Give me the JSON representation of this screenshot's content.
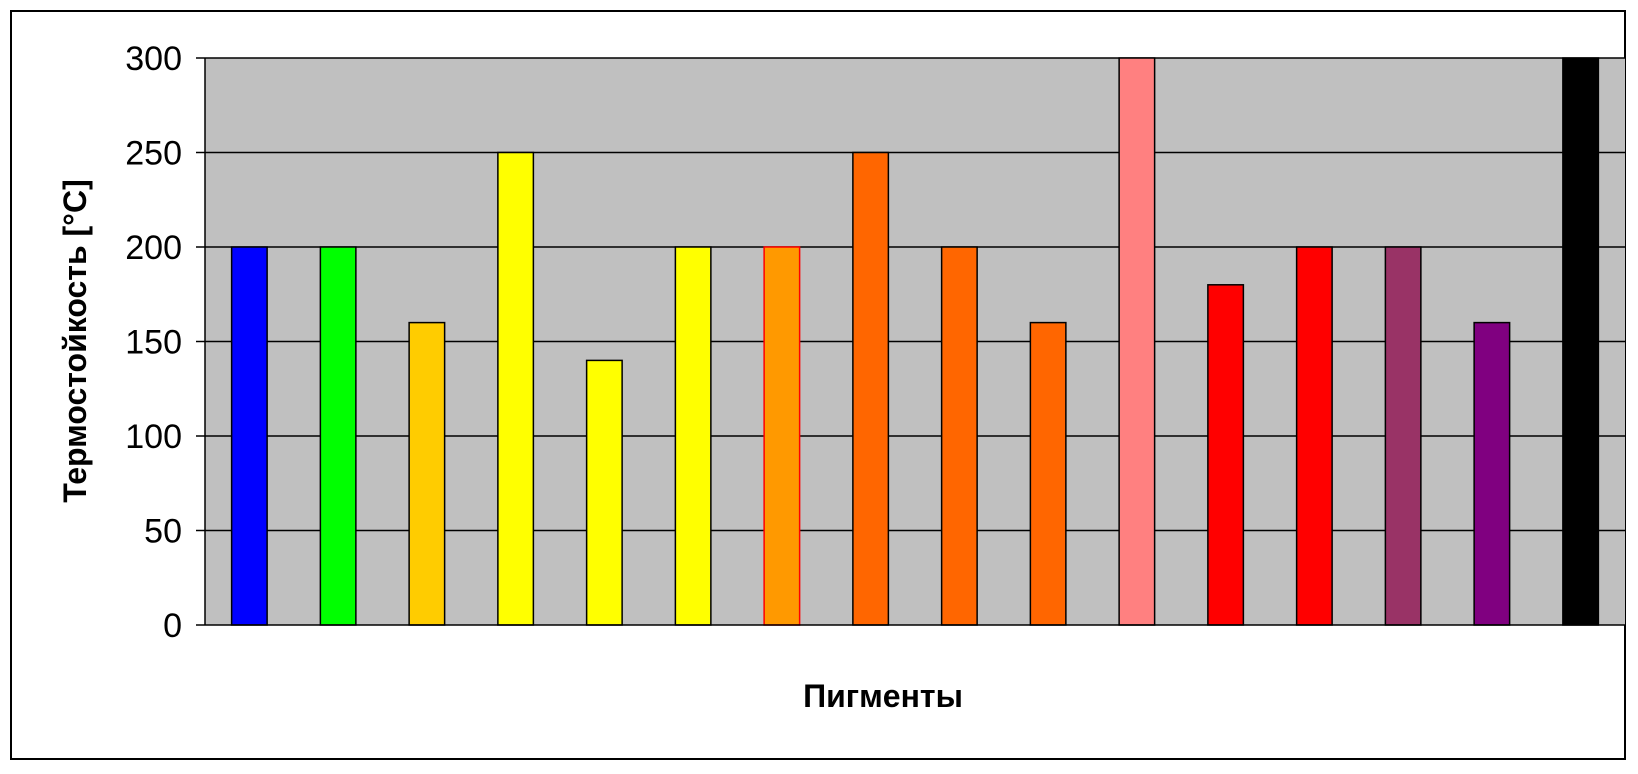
{
  "chart_data": {
    "type": "bar",
    "title": "",
    "xlabel": "Пигменты",
    "ylabel": "Термостойкость [°C]",
    "ylim": [
      0,
      300
    ],
    "yticks": [
      0,
      50,
      100,
      150,
      200,
      250,
      300
    ],
    "grid": true,
    "legend": "none",
    "plot_background": "#C0C0C0",
    "values": [
      200,
      200,
      160,
      250,
      140,
      200,
      200,
      250,
      200,
      160,
      300,
      180,
      200,
      200,
      160,
      300
    ],
    "colors": [
      "#0000FF",
      "#00FF00",
      "#FFCC00",
      "#FFFF00",
      "#FFFF00",
      "#FFFF00",
      "#FF9900",
      "#FF6600",
      "#FF6600",
      "#FF6600",
      "#FF8080",
      "#FF0000",
      "#FF0000",
      "#993366",
      "#800080",
      "#000000"
    ],
    "edge_colors": [
      "#000000",
      "#000000",
      "#000000",
      "#000000",
      "#000000",
      "#000000",
      "#FF0000",
      "#000000",
      "#000000",
      "#000000",
      "#000000",
      "#000000",
      "#000000",
      "#000000",
      "#000000",
      "#000000"
    ]
  }
}
